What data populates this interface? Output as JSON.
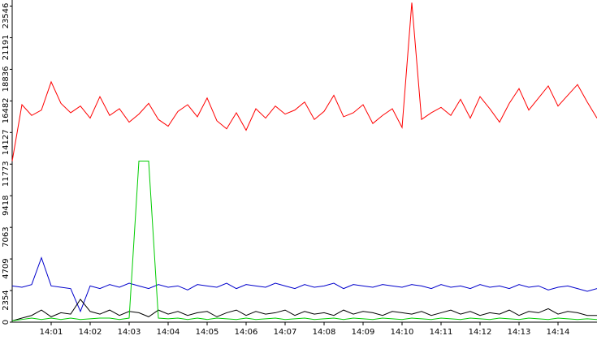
{
  "chart_data": {
    "type": "line",
    "x": [
      0,
      0.25,
      0.5,
      0.75,
      1,
      1.25,
      1.5,
      1.75,
      2,
      2.25,
      2.5,
      2.75,
      3,
      3.25,
      3.5,
      3.75,
      4,
      4.25,
      4.5,
      4.75,
      5,
      5.25,
      5.5,
      5.75,
      6,
      6.25,
      6.5,
      6.75,
      7,
      7.25,
      7.5,
      7.75,
      8,
      8.25,
      8.5,
      8.75,
      9,
      9.25,
      9.5,
      9.75,
      10,
      10.25,
      10.5,
      10.75,
      11,
      11.25,
      11.5,
      11.75,
      12,
      12.25,
      12.5,
      12.75,
      13,
      13.25,
      13.5,
      13.75,
      14,
      14.25,
      14.5,
      14.75,
      15
    ],
    "series": [
      {
        "color": "#ff0000",
        "values": [
          12000,
          16200,
          15400,
          15800,
          17900,
          16300,
          15600,
          16100,
          15200,
          16800,
          15400,
          15900,
          14900,
          15500,
          16300,
          15100,
          14600,
          15700,
          16200,
          15300,
          16700,
          15000,
          14400,
          15600,
          14300,
          15900,
          15200,
          16100,
          15500,
          15800,
          16400,
          15100,
          15700,
          16900,
          15300,
          15600,
          16200,
          14800,
          15400,
          15900,
          14500,
          23800,
          15100,
          15600,
          16000,
          15400,
          16600,
          15200,
          16800,
          15900,
          14900,
          16300,
          17400,
          15800,
          16700,
          17600,
          16100,
          16900,
          17700,
          16400,
          15200
        ]
      },
      {
        "color": "#0000cc",
        "values": [
          2700,
          2600,
          2800,
          4800,
          2700,
          2600,
          2500,
          800,
          2700,
          2500,
          2800,
          2600,
          2900,
          2700,
          2500,
          2800,
          2600,
          2700,
          2400,
          2800,
          2700,
          2600,
          2900,
          2500,
          2800,
          2700,
          2600,
          2900,
          2700,
          2500,
          2800,
          2600,
          2700,
          2900,
          2500,
          2800,
          2700,
          2600,
          2800,
          2700,
          2600,
          2800,
          2700,
          2500,
          2800,
          2600,
          2700,
          2500,
          2800,
          2600,
          2700,
          2500,
          2800,
          2600,
          2700,
          2400,
          2600,
          2700,
          2500,
          2300,
          2500
        ]
      },
      {
        "color": "#000000",
        "values": [
          100,
          300,
          500,
          900,
          400,
          700,
          600,
          1700,
          800,
          600,
          900,
          500,
          800,
          700,
          400,
          900,
          600,
          800,
          500,
          700,
          800,
          400,
          700,
          900,
          500,
          800,
          600,
          700,
          900,
          500,
          800,
          600,
          700,
          500,
          900,
          600,
          800,
          700,
          500,
          800,
          700,
          600,
          800,
          500,
          700,
          900,
          600,
          800,
          500,
          700,
          600,
          900,
          500,
          800,
          700,
          1000,
          600,
          800,
          700,
          500,
          500
        ]
      },
      {
        "color": "#00cc00",
        "values": [
          100,
          200,
          300,
          200,
          300,
          200,
          300,
          200,
          250,
          300,
          300,
          200,
          300,
          12000,
          12000,
          300,
          250,
          300,
          200,
          300,
          200,
          300,
          250,
          200,
          300,
          200,
          250,
          300,
          200,
          250,
          300,
          200,
          250,
          300,
          200,
          300,
          250,
          200,
          300,
          250,
          200,
          300,
          250,
          200,
          300,
          250,
          200,
          300,
          250,
          200,
          300,
          250,
          200,
          300,
          250,
          200,
          300,
          250,
          200,
          250,
          200
        ]
      }
    ],
    "xlim": [
      0,
      15
    ],
    "xticks": [
      {
        "value": 1,
        "label": "14:01"
      },
      {
        "value": 2,
        "label": "14:02"
      },
      {
        "value": 3,
        "label": "14:03"
      },
      {
        "value": 4,
        "label": "14:04"
      },
      {
        "value": 5,
        "label": "14:05"
      },
      {
        "value": 6,
        "label": "14:06"
      },
      {
        "value": 7,
        "label": "14:07"
      },
      {
        "value": 8,
        "label": "14:08"
      },
      {
        "value": 9,
        "label": "14:09"
      },
      {
        "value": 10,
        "label": "14:10"
      },
      {
        "value": 11,
        "label": "14:11"
      },
      {
        "value": 12,
        "label": "14:12"
      },
      {
        "value": 13,
        "label": "14:13"
      },
      {
        "value": 14,
        "label": "14:14"
      }
    ],
    "ylim": [
      0,
      24000
    ],
    "yticks": [
      0,
      2354,
      4709,
      7063,
      9418,
      11773,
      14127,
      16482,
      18836,
      21191,
      23546
    ]
  }
}
